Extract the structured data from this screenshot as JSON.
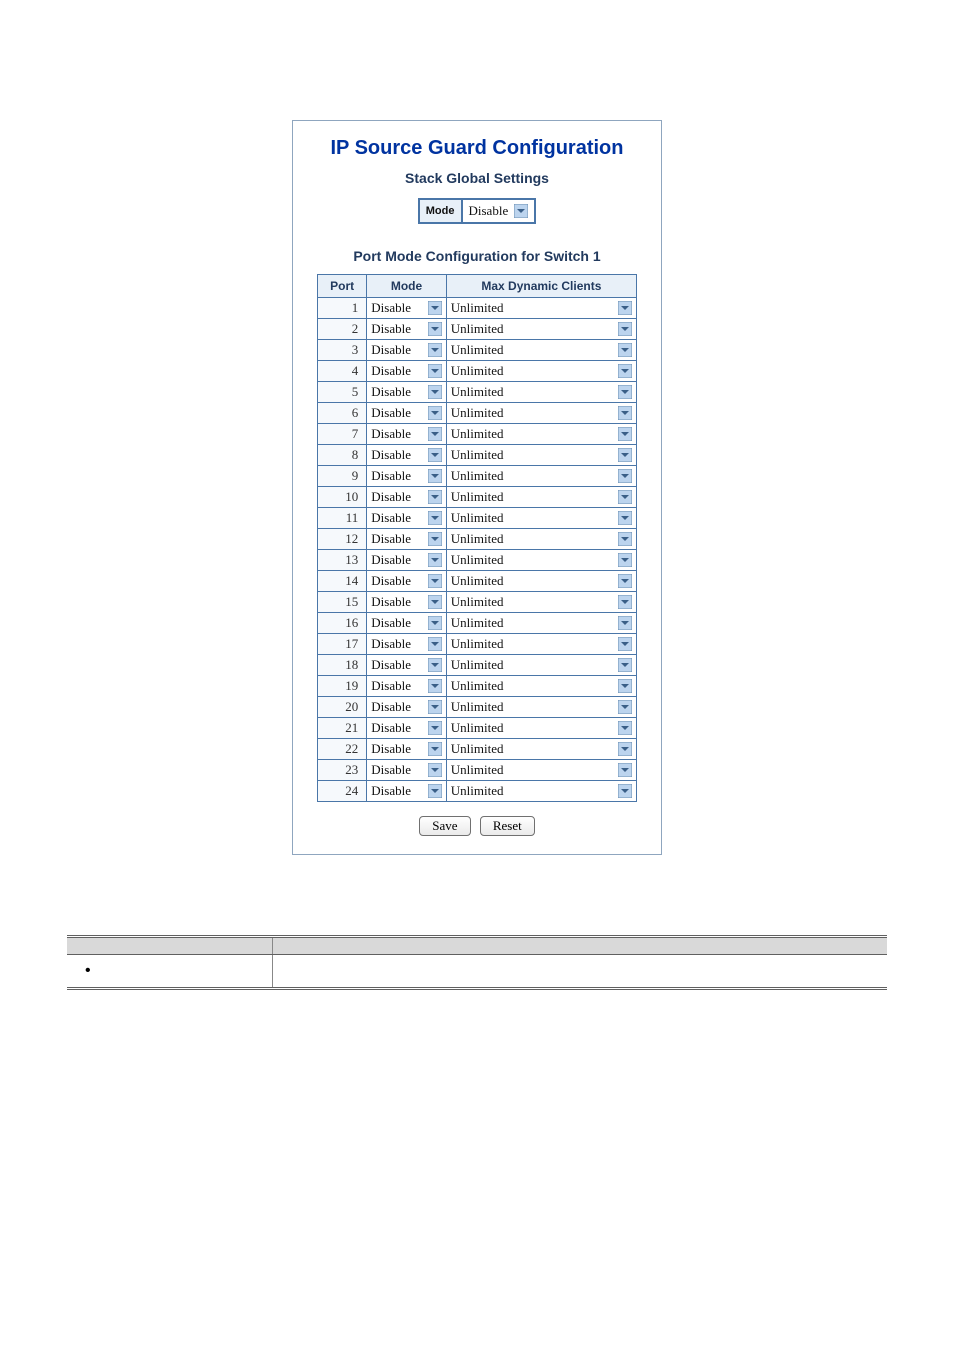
{
  "colors": {
    "accent": "#0033a0",
    "subtitle": "#223a5e",
    "border": "#4a76a8",
    "header_bg": "#e8f0f8",
    "doc_header_bg": "#d9d9d9",
    "doc_rule": "#606060"
  },
  "titles": {
    "main": "IP Source Guard Configuration",
    "stack": "Stack Global Settings",
    "port_section": "Port Mode Configuration for Switch 1"
  },
  "global_mode": {
    "label": "Mode",
    "value": "Disable"
  },
  "port_table": {
    "headers": {
      "port": "Port",
      "mode": "Mode",
      "max": "Max Dynamic Clients"
    },
    "rows": [
      {
        "port": "1",
        "mode": "Disable",
        "max": "Unlimited"
      },
      {
        "port": "2",
        "mode": "Disable",
        "max": "Unlimited"
      },
      {
        "port": "3",
        "mode": "Disable",
        "max": "Unlimited"
      },
      {
        "port": "4",
        "mode": "Disable",
        "max": "Unlimited"
      },
      {
        "port": "5",
        "mode": "Disable",
        "max": "Unlimited"
      },
      {
        "port": "6",
        "mode": "Disable",
        "max": "Unlimited"
      },
      {
        "port": "7",
        "mode": "Disable",
        "max": "Unlimited"
      },
      {
        "port": "8",
        "mode": "Disable",
        "max": "Unlimited"
      },
      {
        "port": "9",
        "mode": "Disable",
        "max": "Unlimited"
      },
      {
        "port": "10",
        "mode": "Disable",
        "max": "Unlimited"
      },
      {
        "port": "11",
        "mode": "Disable",
        "max": "Unlimited"
      },
      {
        "port": "12",
        "mode": "Disable",
        "max": "Unlimited"
      },
      {
        "port": "13",
        "mode": "Disable",
        "max": "Unlimited"
      },
      {
        "port": "14",
        "mode": "Disable",
        "max": "Unlimited"
      },
      {
        "port": "15",
        "mode": "Disable",
        "max": "Unlimited"
      },
      {
        "port": "16",
        "mode": "Disable",
        "max": "Unlimited"
      },
      {
        "port": "17",
        "mode": "Disable",
        "max": "Unlimited"
      },
      {
        "port": "18",
        "mode": "Disable",
        "max": "Unlimited"
      },
      {
        "port": "19",
        "mode": "Disable",
        "max": "Unlimited"
      },
      {
        "port": "20",
        "mode": "Disable",
        "max": "Unlimited"
      },
      {
        "port": "21",
        "mode": "Disable",
        "max": "Unlimited"
      },
      {
        "port": "22",
        "mode": "Disable",
        "max": "Unlimited"
      },
      {
        "port": "23",
        "mode": "Disable",
        "max": "Unlimited"
      },
      {
        "port": "24",
        "mode": "Disable",
        "max": "Unlimited"
      }
    ]
  },
  "buttons": {
    "save": "Save",
    "reset": "Reset"
  },
  "doc_table": {
    "left_header": "",
    "right_header": "",
    "bullet": "•",
    "left_text": "",
    "right_text": ""
  }
}
